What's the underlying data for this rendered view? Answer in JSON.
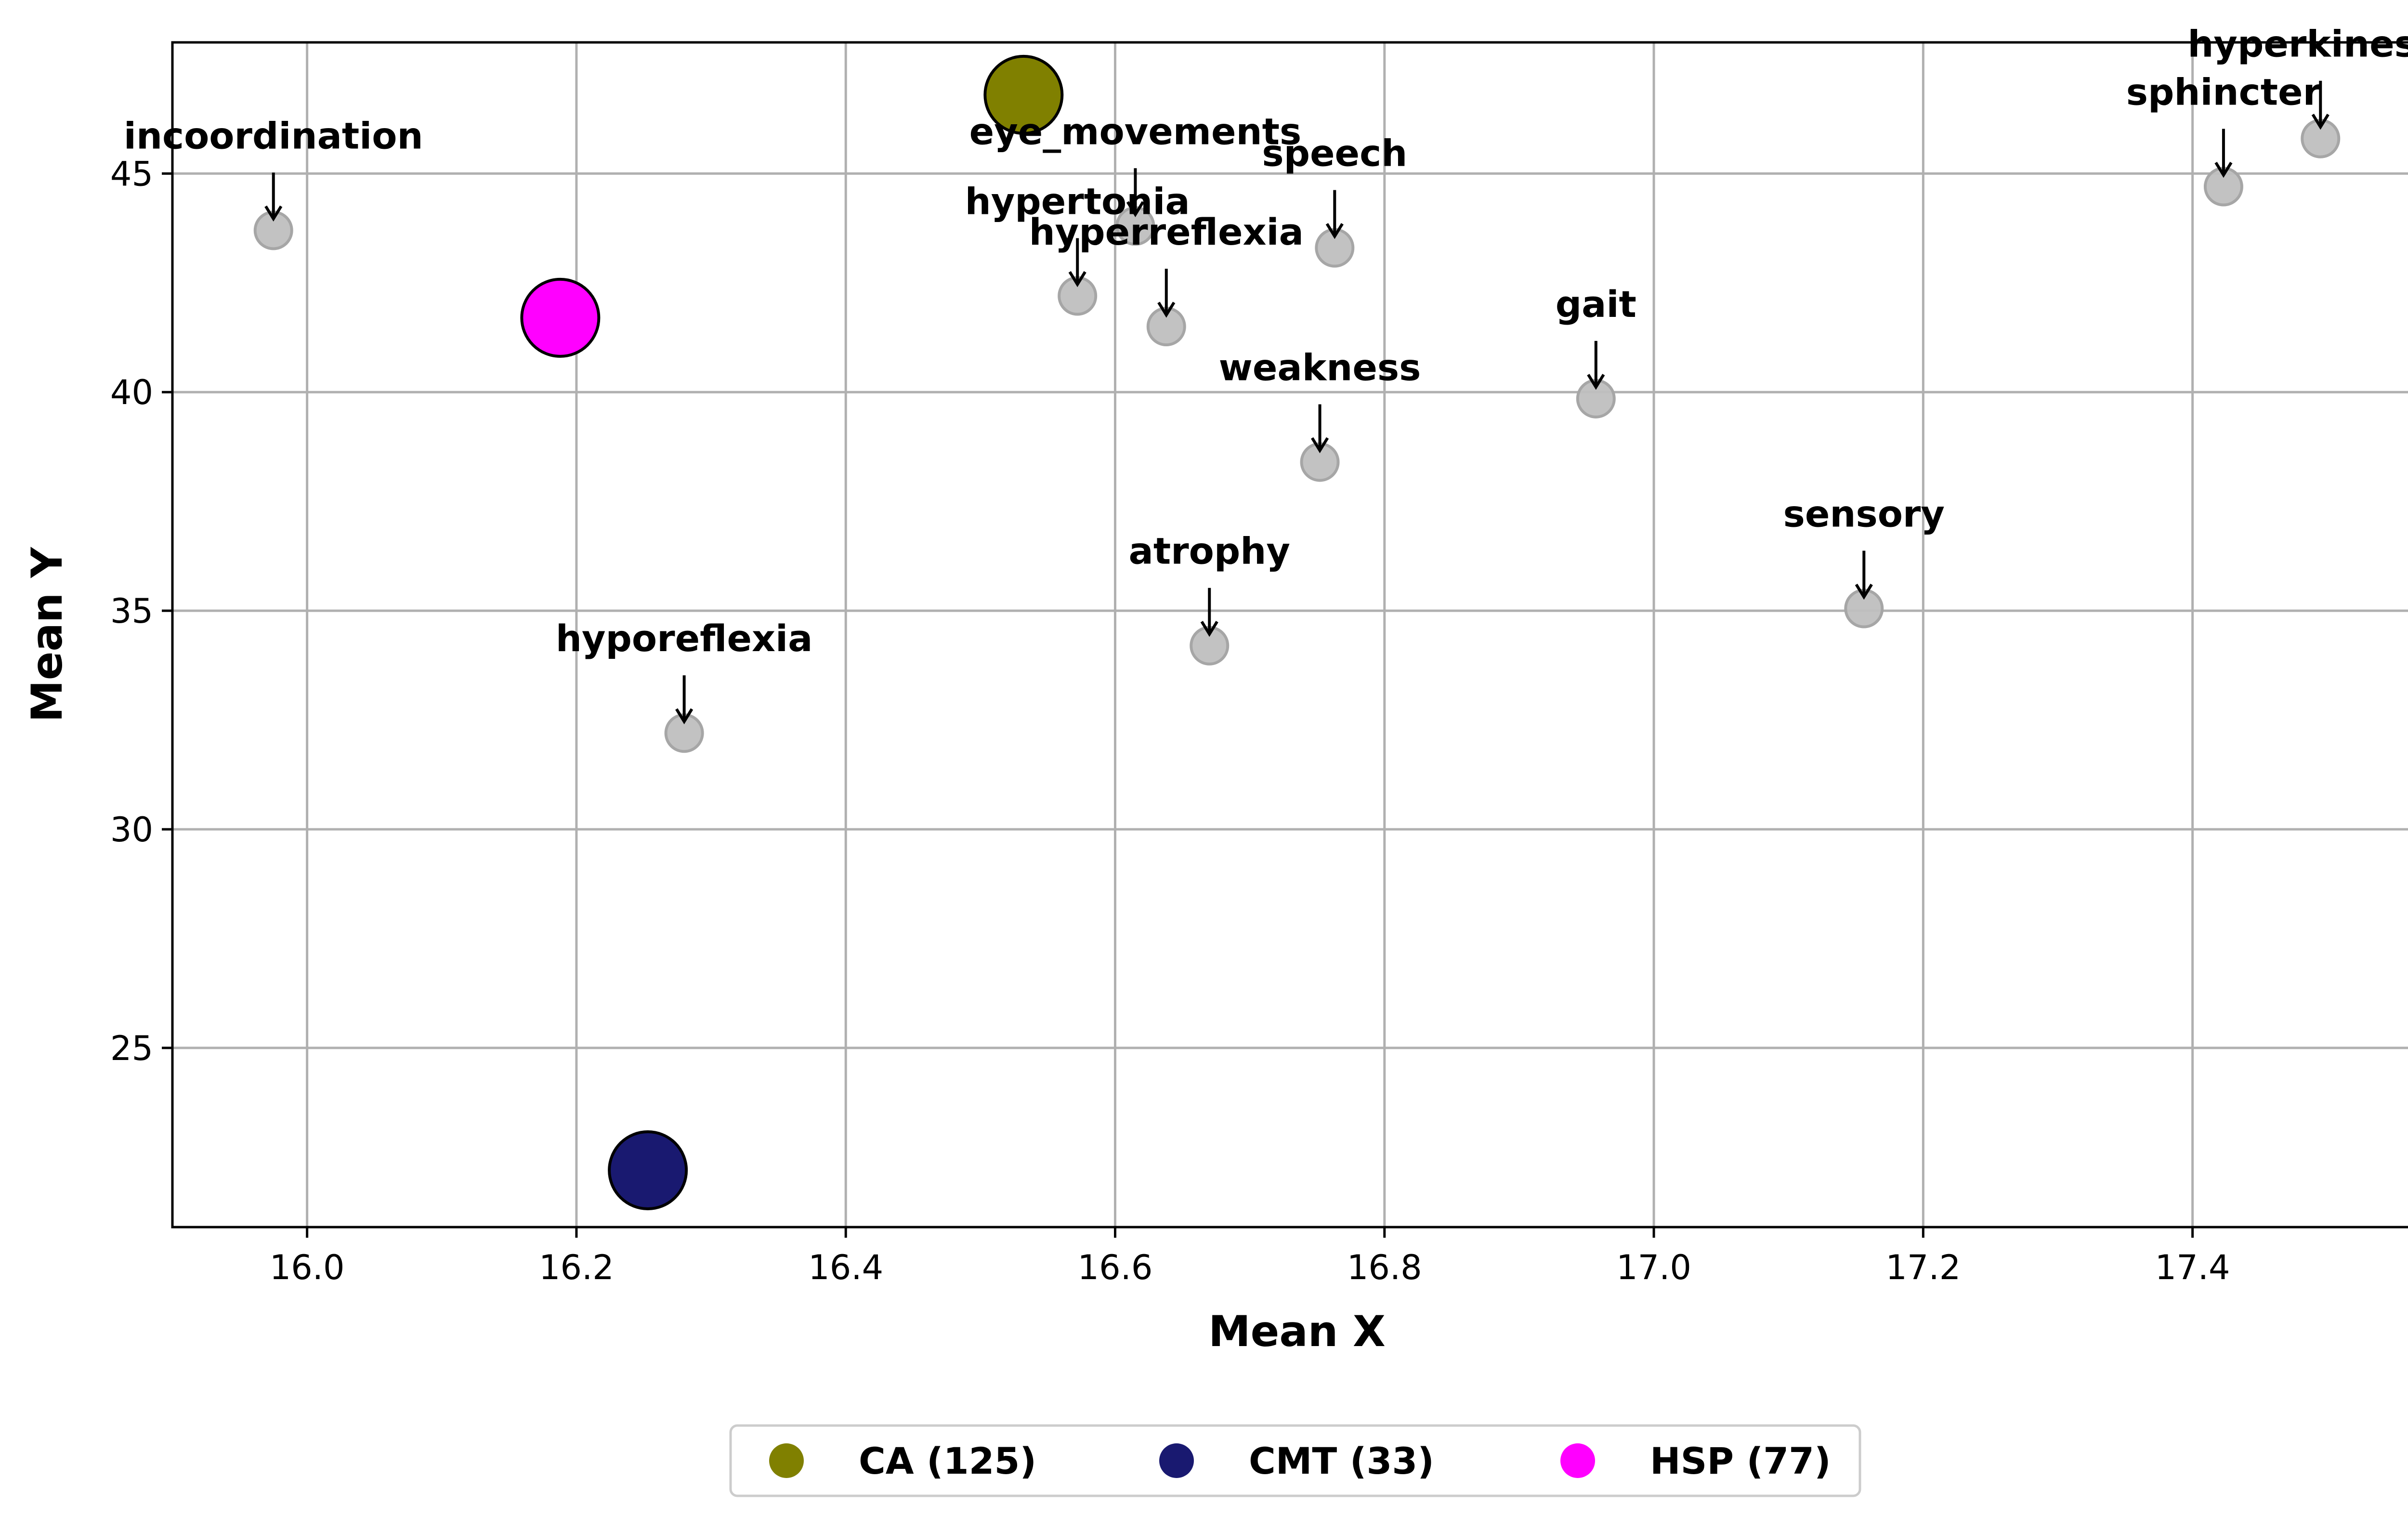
{
  "chart_data": {
    "type": "scatter",
    "xlabel": "Mean X",
    "ylabel": "Mean Y",
    "xlim": [
      15.9,
      17.57
    ],
    "ylim": [
      20.9,
      48.0
    ],
    "xticks": [
      16.0,
      16.2,
      16.4,
      16.6,
      16.8,
      17.0,
      17.2,
      17.4
    ],
    "xtick_labels": [
      "16.0",
      "16.2",
      "16.4",
      "16.6",
      "16.8",
      "17.0",
      "17.2",
      "17.4"
    ],
    "yticks": [
      25,
      30,
      35,
      40,
      45
    ],
    "ytick_labels": [
      "25",
      "30",
      "35",
      "40",
      "45"
    ],
    "grid": true,
    "legend_position": "bottom-center",
    "symptoms": [
      {
        "label": "incoordination",
        "x": 15.975,
        "y": 43.7
      },
      {
        "label": "hyporeflexia",
        "x": 16.28,
        "y": 32.2
      },
      {
        "label": "hypertonia",
        "x": 16.572,
        "y": 42.2
      },
      {
        "label": "eye_movements",
        "x": 16.615,
        "y": 43.8
      },
      {
        "label": "hyperreflexia",
        "x": 16.638,
        "y": 41.5
      },
      {
        "label": "atrophy",
        "x": 16.67,
        "y": 34.2
      },
      {
        "label": "weakness",
        "x": 16.752,
        "y": 38.4
      },
      {
        "label": "speech",
        "x": 16.763,
        "y": 43.3
      },
      {
        "label": "gait",
        "x": 16.957,
        "y": 39.85
      },
      {
        "label": "sensory",
        "x": 17.156,
        "y": 35.05
      },
      {
        "label": "sphincter",
        "x": 17.423,
        "y": 44.7
      },
      {
        "label": "hyperkinesia",
        "x": 17.495,
        "y": 45.8
      }
    ],
    "symptom_color": "#bfbfbf",
    "groups": [
      {
        "name": "CA (125)",
        "x": 16.532,
        "y": 46.8,
        "color": "#808000"
      },
      {
        "name": "CMT (33)",
        "x": 16.253,
        "y": 22.2,
        "color": "#191970"
      },
      {
        "name": "HSP (77)",
        "x": 16.188,
        "y": 41.7,
        "color": "#ff00ff"
      }
    ]
  }
}
